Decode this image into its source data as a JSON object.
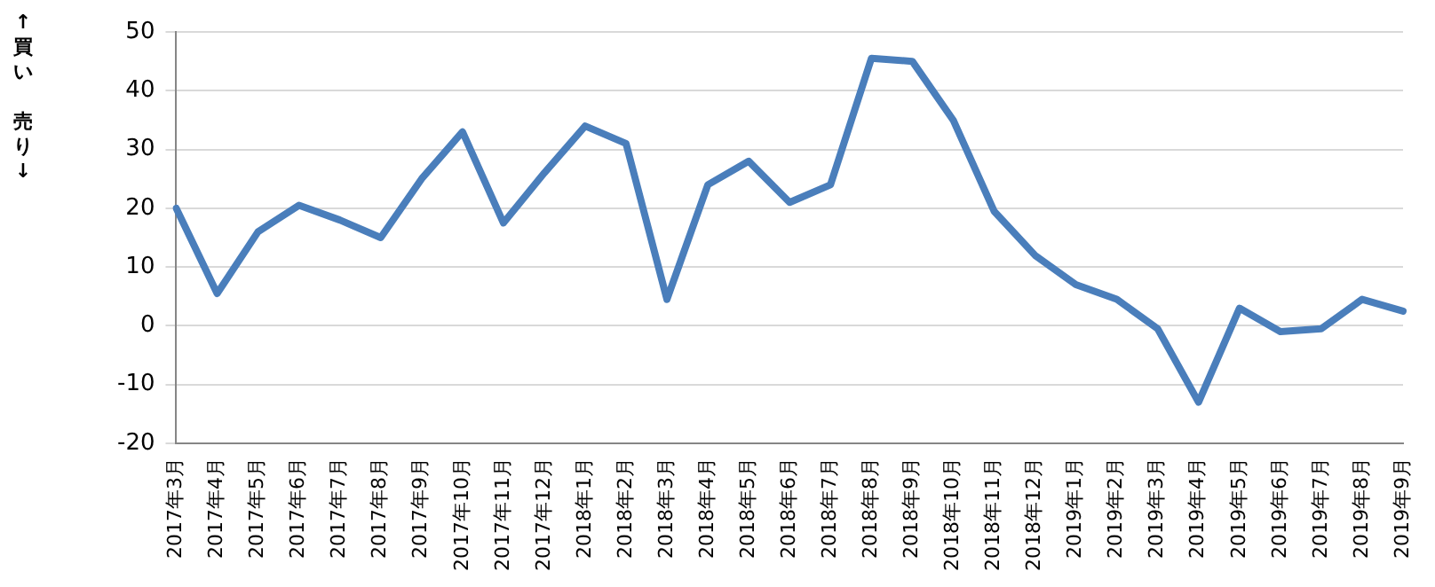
{
  "chart_data": {
    "type": "line",
    "ylabel": "↑買い売り↓",
    "categories": [
      "2017年3月",
      "2017年4月",
      "2017年5月",
      "2017年6月",
      "2017年7月",
      "2017年8月",
      "2017年9月",
      "2017年10月",
      "2017年11月",
      "2017年12月",
      "2018年1月",
      "2018年2月",
      "2018年3月",
      "2018年4月",
      "2018年5月",
      "2018年6月",
      "2018年7月",
      "2018年8月",
      "2018年9月",
      "2018年10月",
      "2018年11月",
      "2018年12月",
      "2019年1月",
      "2019年2月",
      "2019年3月",
      "2019年4月",
      "2019年5月",
      "2019年6月",
      "2019年7月",
      "2019年8月",
      "2019年9月"
    ],
    "series": [
      {
        "color": "#4a7ebb",
        "values": [
          20,
          5.5,
          16,
          20.5,
          18,
          15,
          25,
          33,
          17.5,
          26,
          34,
          31,
          4.5,
          24,
          28,
          21,
          24,
          45.5,
          45,
          35,
          19.5,
          12,
          7,
          4.5,
          -0.5,
          -13,
          3,
          -1,
          -0.5,
          4.5,
          2.5
        ]
      }
    ],
    "ylim": [
      -20,
      50
    ],
    "yticks": [
      -20,
      -10,
      0,
      10,
      20,
      30,
      40,
      50
    ],
    "grid": "y",
    "legend": false,
    "marker": "none",
    "line_style": "solid"
  }
}
